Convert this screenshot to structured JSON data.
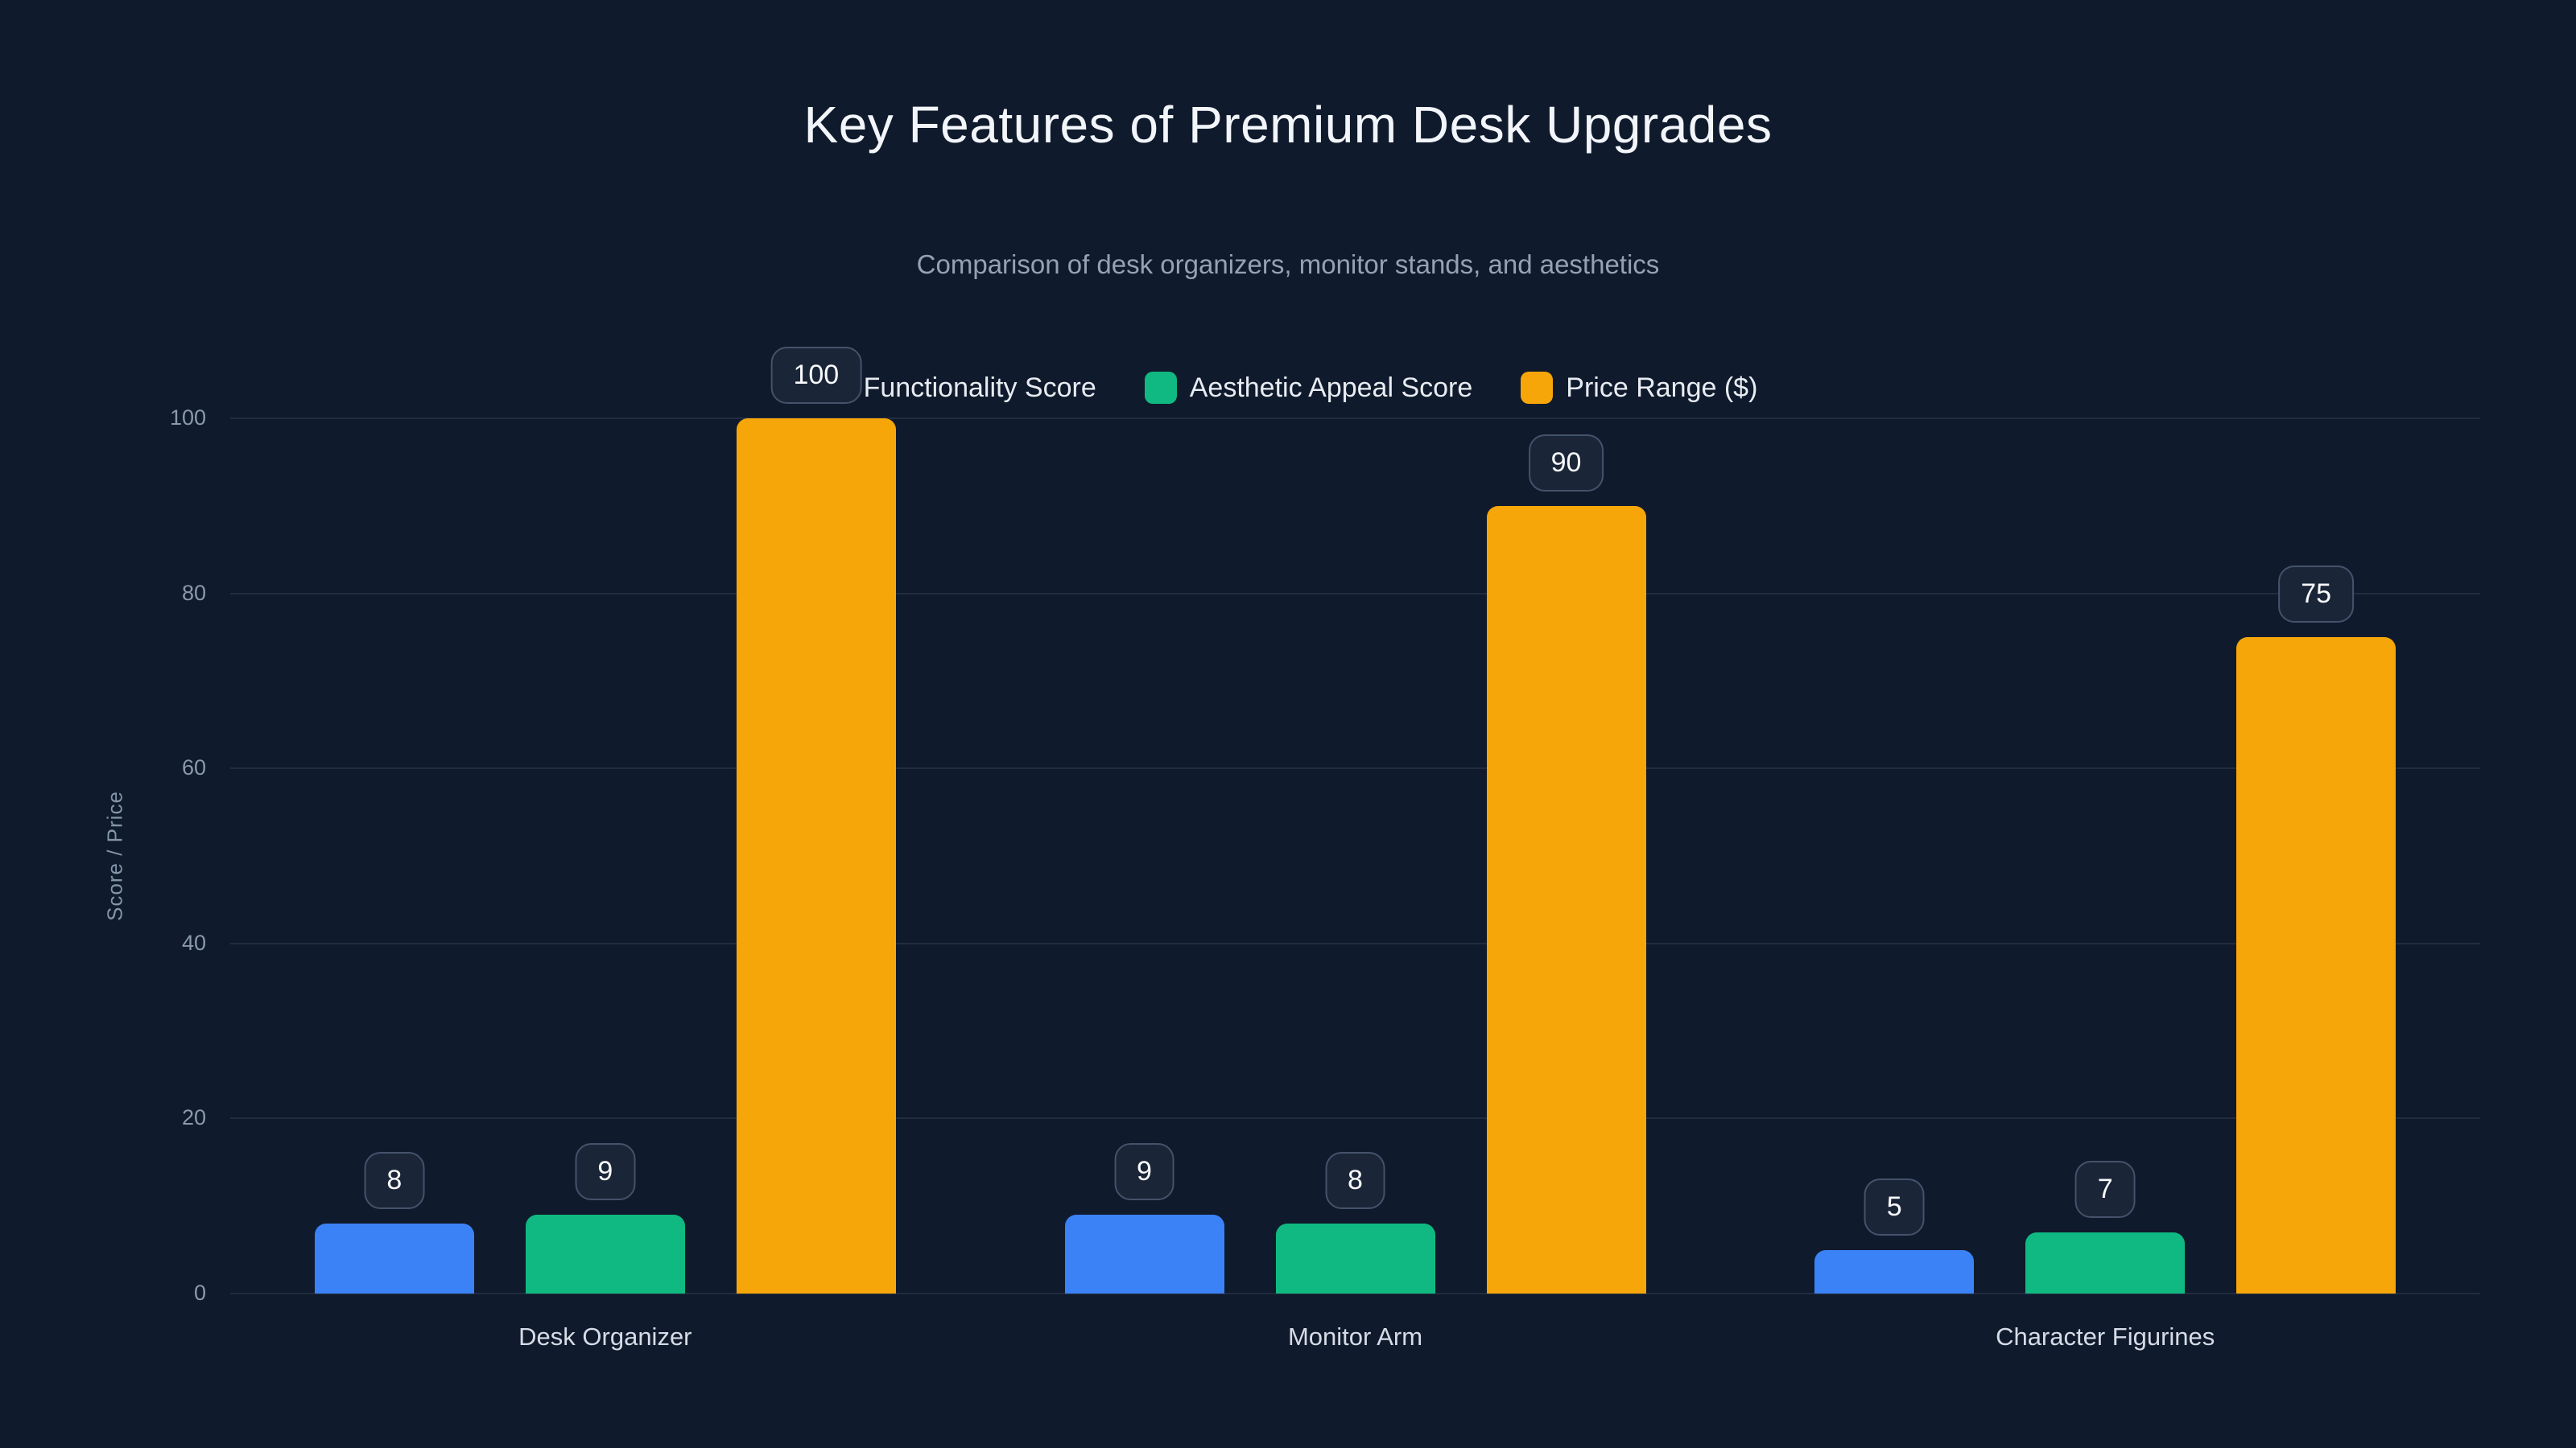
{
  "chart": {
    "title": "Key Features of Premium Desk Upgrades",
    "subtitle": "Comparison of desk organizers, monitor stands, and aesthetics"
  },
  "chart_data": {
    "type": "bar",
    "title": "Key Features of Premium Desk Upgrades",
    "subtitle": "Comparison of desk organizers, monitor stands, and aesthetics",
    "categories": [
      "Desk Organizer",
      "Monitor Arm",
      "Character Figurines"
    ],
    "series": [
      {
        "name": "Functionality Score",
        "color": "#3b82f6",
        "values": [
          8,
          9,
          5
        ]
      },
      {
        "name": "Aesthetic Appeal Score",
        "color": "#10b981",
        "values": [
          9,
          8,
          7
        ]
      },
      {
        "name": "Price Range ($)",
        "color": "#f6a609",
        "values": [
          100,
          90,
          75
        ]
      }
    ],
    "xlabel": "",
    "ylabel": "Score / Price",
    "ylim": [
      0,
      100
    ],
    "yticks": [
      0,
      20,
      40,
      60,
      80,
      100
    ],
    "grid": true,
    "legend_position": "top",
    "background_color": "#0f1a2c"
  }
}
